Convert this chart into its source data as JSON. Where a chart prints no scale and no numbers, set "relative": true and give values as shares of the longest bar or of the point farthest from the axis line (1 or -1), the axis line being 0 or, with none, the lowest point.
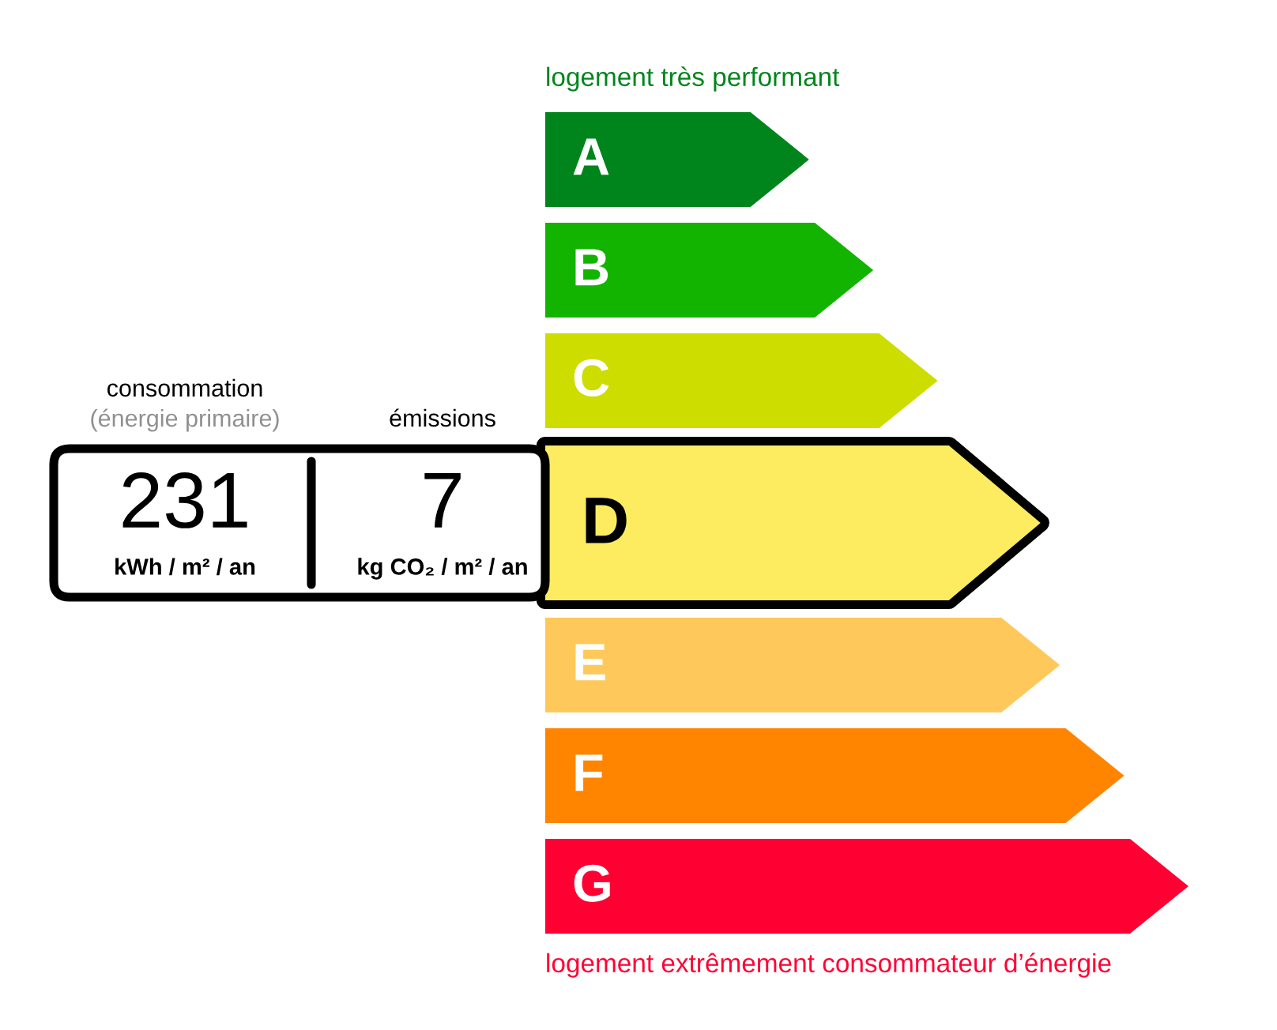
{
  "chart_data": {
    "type": "bar",
    "orientation": "horizontal",
    "relative": true,
    "categories": [
      "A",
      "B",
      "C",
      "D",
      "E",
      "F",
      "G"
    ],
    "values": [
      0.41,
      0.51,
      0.61,
      0.77,
      0.8,
      0.9,
      1.0
    ],
    "colors": [
      "#00851c",
      "#13b400",
      "#cddd00",
      "#fdeb60",
      "#fec95a",
      "#ff8500",
      "#ff0033"
    ],
    "annotations": [
      "logement très performant",
      "logement extrêmement consommateur d’énergie",
      "consommation",
      "(énergie primaire)",
      "émissions",
      "231",
      "kWh / m² / an",
      "7",
      "kg CO₂ / m² / an"
    ]
  }
}
